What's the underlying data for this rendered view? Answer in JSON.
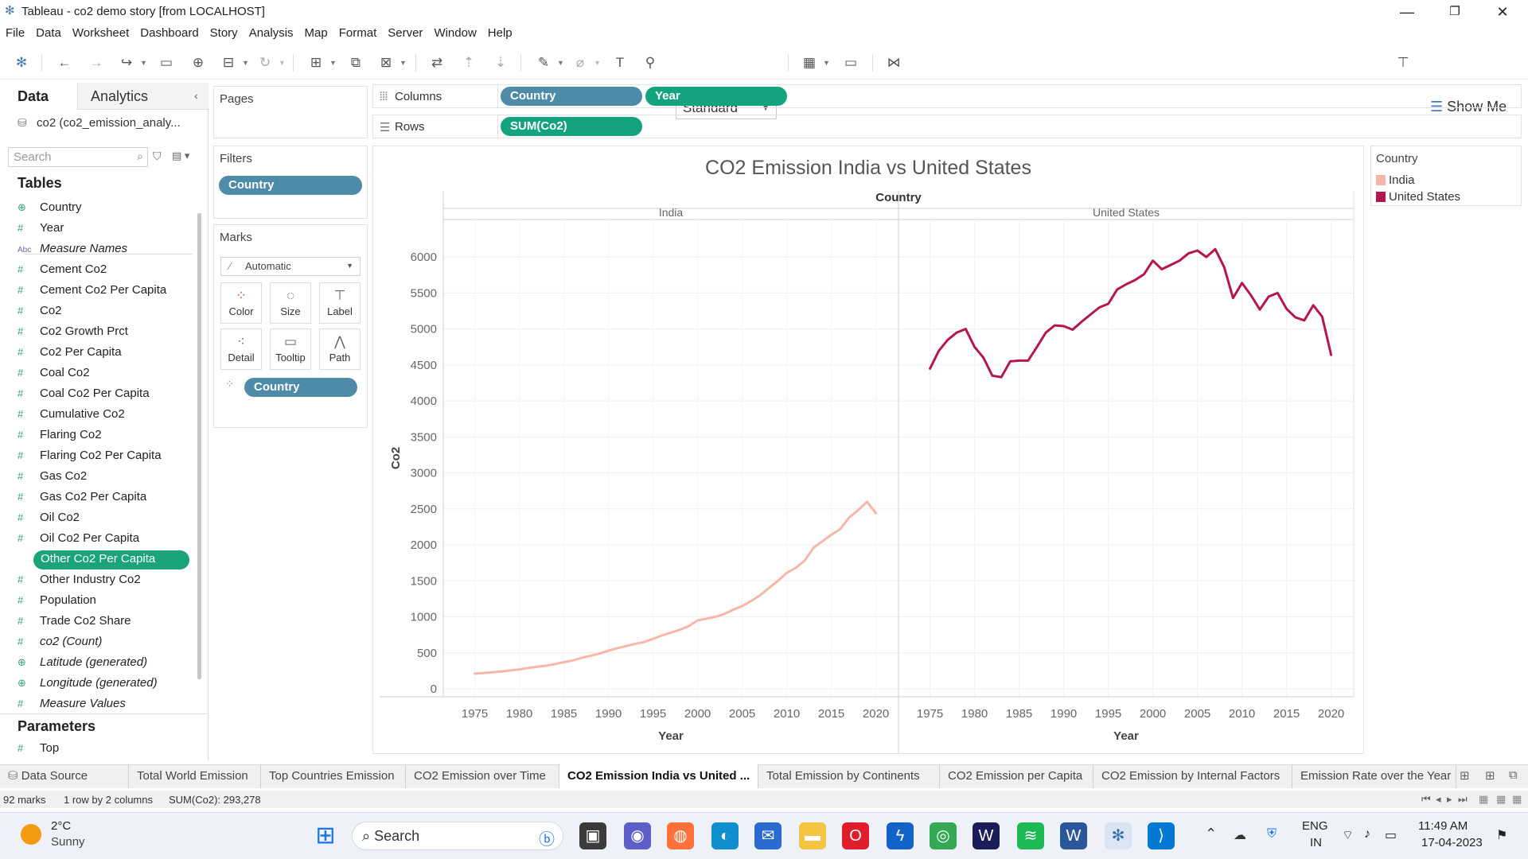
{
  "window": {
    "title": "Tableau - co2 demo story [from LOCALHOST]",
    "minimize": "—",
    "restore": "❐",
    "close": "✕"
  },
  "menu": [
    "File",
    "Data",
    "Worksheet",
    "Dashboard",
    "Story",
    "Analysis",
    "Map",
    "Format",
    "Server",
    "Window",
    "Help"
  ],
  "toolbar": {
    "fit_select": "Standard",
    "show_me": "Show Me"
  },
  "data_pane": {
    "tab_data": "Data",
    "tab_analytics": "Analytics",
    "datasource": "co2 (co2_emission_analy...",
    "search_placeholder": "Search",
    "tables_heading": "Tables",
    "fields": [
      {
        "label": "Country",
        "icon": "globe-icon"
      },
      {
        "label": "Year",
        "icon": "hash-icon"
      },
      {
        "label": "Measure Names",
        "icon": "abc-icon"
      },
      {
        "label": "Cement Co2",
        "icon": "hash-icon"
      },
      {
        "label": "Cement Co2 Per Capita",
        "icon": "hash-icon"
      },
      {
        "label": "Co2",
        "icon": "hash-icon"
      },
      {
        "label": "Co2 Growth Prct",
        "icon": "hash-icon"
      },
      {
        "label": "Co2 Per Capita",
        "icon": "hash-icon"
      },
      {
        "label": "Coal Co2",
        "icon": "hash-icon"
      },
      {
        "label": "Coal Co2 Per Capita",
        "icon": "hash-icon"
      },
      {
        "label": "Cumulative Co2",
        "icon": "hash-icon"
      },
      {
        "label": "Flaring Co2",
        "icon": "hash-icon"
      },
      {
        "label": "Flaring Co2 Per Capita",
        "icon": "hash-icon"
      },
      {
        "label": "Gas Co2",
        "icon": "hash-icon"
      },
      {
        "label": "Gas Co2 Per Capita",
        "icon": "hash-icon"
      },
      {
        "label": "Oil Co2",
        "icon": "hash-icon"
      },
      {
        "label": "Oil Co2 Per Capita",
        "icon": "hash-icon"
      },
      {
        "label": "Other Co2 Per Capita",
        "icon": "hash-icon"
      },
      {
        "label": "Other Industry Co2",
        "icon": "hash-icon"
      },
      {
        "label": "Population",
        "icon": "hash-icon"
      },
      {
        "label": "Trade Co2 Share",
        "icon": "hash-icon"
      },
      {
        "label": "co2 (Count)",
        "icon": "hash-icon"
      },
      {
        "label": "Latitude (generated)",
        "icon": "globe-icon"
      },
      {
        "label": "Longitude (generated)",
        "icon": "globe-icon"
      },
      {
        "label": "Measure Values",
        "icon": "hash-icon"
      }
    ],
    "parameters_heading": "Parameters",
    "parameters": [
      {
        "label": "Top",
        "icon": "hash-icon"
      }
    ]
  },
  "cards": {
    "pages": "Pages",
    "filters": "Filters",
    "filter_pill": "Country",
    "marks": "Marks",
    "mark_type": "Automatic",
    "mark_buttons": [
      "Color",
      "Size",
      "Label",
      "Detail",
      "Tooltip",
      "Path"
    ],
    "color_pill": "Country"
  },
  "shelves": {
    "columns_label": "Columns",
    "columns_pills": [
      "Country",
      "Year"
    ],
    "rows_label": "Rows",
    "rows_pills": [
      "SUM(Co2)"
    ]
  },
  "legend": {
    "title": "Country",
    "items": [
      {
        "label": "India",
        "color": "#f7b7a8"
      },
      {
        "label": "United States",
        "color": "#b5174b"
      }
    ]
  },
  "chart_data": {
    "type": "line",
    "title": "CO2 Emission India vs United States",
    "header": "Country",
    "ylabel": "Co2",
    "xlabel": "Year",
    "ylim": [
      0,
      6300
    ],
    "xlim": [
      1972,
      2022
    ],
    "yticks": [
      0,
      500,
      1000,
      1500,
      2000,
      2500,
      3000,
      3500,
      4000,
      4500,
      5000,
      5500,
      6000
    ],
    "xticks": [
      1975,
      1980,
      1985,
      1990,
      1995,
      2000,
      2005,
      2010,
      2015,
      2020
    ],
    "panes": [
      {
        "name": "India",
        "color": "#f7b7a8",
        "x": [
          1975,
          1976,
          1977,
          1978,
          1979,
          1980,
          1981,
          1982,
          1983,
          1984,
          1985,
          1986,
          1987,
          1988,
          1989,
          1990,
          1991,
          1992,
          1993,
          1994,
          1995,
          1996,
          1997,
          1998,
          1999,
          2000,
          2001,
          2002,
          2003,
          2004,
          2005,
          2006,
          2007,
          2008,
          2009,
          2010,
          2011,
          2012,
          2013,
          2014,
          2015,
          2016,
          2017,
          2018,
          2019,
          2020
        ],
        "y": [
          210,
          220,
          230,
          240,
          255,
          270,
          290,
          305,
          320,
          345,
          370,
          395,
          430,
          460,
          490,
          530,
          565,
          595,
          625,
          650,
          695,
          740,
          780,
          820,
          870,
          950,
          975,
          1000,
          1040,
          1100,
          1150,
          1220,
          1300,
          1400,
          1500,
          1610,
          1680,
          1780,
          1960,
          2050,
          2140,
          2220,
          2380,
          2480,
          2600,
          2440
        ]
      },
      {
        "name": "United States",
        "color": "#b5174b",
        "x": [
          1975,
          1976,
          1977,
          1978,
          1979,
          1980,
          1981,
          1982,
          1983,
          1984,
          1985,
          1986,
          1987,
          1988,
          1989,
          1990,
          1991,
          1992,
          1993,
          1994,
          1995,
          1996,
          1997,
          1998,
          1999,
          2000,
          2001,
          2002,
          2003,
          2004,
          2005,
          2006,
          2007,
          2008,
          2009,
          2010,
          2011,
          2012,
          2013,
          2014,
          2015,
          2016,
          2017,
          2018,
          2019,
          2020
        ],
        "y": [
          4450,
          4700,
          4850,
          4950,
          5000,
          4750,
          4600,
          4350,
          4330,
          4550,
          4560,
          4560,
          4750,
          4950,
          5050,
          5040,
          4990,
          5100,
          5200,
          5300,
          5350,
          5550,
          5620,
          5680,
          5760,
          5950,
          5830,
          5890,
          5950,
          6050,
          6090,
          6000,
          6110,
          5860,
          5430,
          5640,
          5470,
          5270,
          5450,
          5500,
          5280,
          5160,
          5120,
          5330,
          5170,
          4640
        ]
      }
    ]
  },
  "sheet_tabs": {
    "data_source": "Data Source",
    "tabs": [
      "Total World Emission",
      "Top Countries Emission",
      "CO2 Emission over Time",
      "CO2 Emission India vs United ...",
      "Total Emission by Continents",
      "CO2 Emission per Capita",
      "CO2 Emission by Internal Factors",
      "Emission Rate over the Year"
    ],
    "active_index": 3
  },
  "status": {
    "marks": "92 marks",
    "rows_cols": "1 row by 2 columns",
    "sum": "SUM(Co2): 293,278"
  },
  "taskbar": {
    "weather_temp": "2°C",
    "weather_desc": "Sunny",
    "search": "Search",
    "lang_top": "ENG",
    "lang_bottom": "IN",
    "time": "11:49 AM",
    "date": "17-04-2023"
  }
}
